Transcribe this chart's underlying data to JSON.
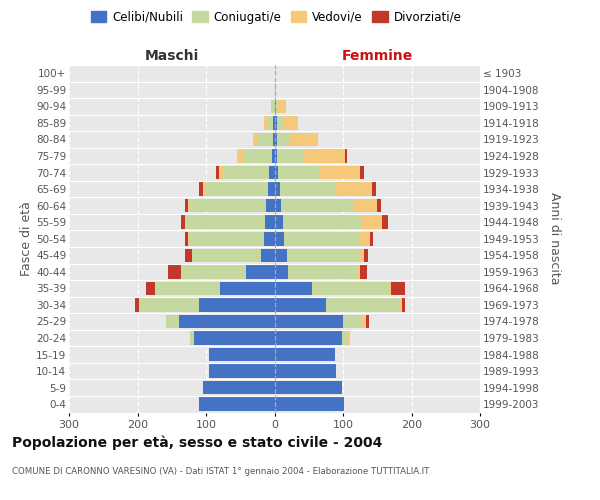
{
  "age_groups": [
    "0-4",
    "5-9",
    "10-14",
    "15-19",
    "20-24",
    "25-29",
    "30-34",
    "35-39",
    "40-44",
    "45-49",
    "50-54",
    "55-59",
    "60-64",
    "65-69",
    "70-74",
    "75-79",
    "80-84",
    "85-89",
    "90-94",
    "95-99",
    "100+"
  ],
  "birth_years": [
    "1999-2003",
    "1994-1998",
    "1989-1993",
    "1984-1988",
    "1979-1983",
    "1974-1978",
    "1969-1973",
    "1964-1968",
    "1959-1963",
    "1954-1958",
    "1949-1953",
    "1944-1948",
    "1939-1943",
    "1934-1938",
    "1929-1933",
    "1924-1928",
    "1919-1923",
    "1914-1918",
    "1909-1913",
    "1904-1908",
    "≤ 1903"
  ],
  "maschi_celibi": [
    110,
    105,
    95,
    95,
    118,
    140,
    110,
    80,
    42,
    20,
    16,
    14,
    13,
    10,
    8,
    3,
    2,
    2,
    0,
    0,
    0
  ],
  "maschi_coniugati": [
    0,
    0,
    0,
    0,
    5,
    18,
    88,
    95,
    95,
    100,
    108,
    115,
    110,
    90,
    65,
    42,
    22,
    8,
    3,
    0,
    0
  ],
  "maschi_vedovi": [
    0,
    0,
    0,
    0,
    0,
    0,
    0,
    0,
    0,
    0,
    2,
    2,
    3,
    5,
    8,
    10,
    8,
    5,
    2,
    0,
    0
  ],
  "maschi_divorziati": [
    0,
    0,
    0,
    0,
    0,
    0,
    5,
    12,
    18,
    10,
    5,
    5,
    5,
    5,
    5,
    0,
    0,
    0,
    0,
    0,
    0
  ],
  "femmine_nubili": [
    102,
    98,
    90,
    88,
    98,
    100,
    75,
    55,
    20,
    18,
    14,
    12,
    10,
    8,
    5,
    3,
    3,
    4,
    2,
    0,
    0
  ],
  "femmine_coniugate": [
    0,
    0,
    0,
    0,
    10,
    28,
    108,
    112,
    100,
    105,
    110,
    115,
    105,
    80,
    60,
    40,
    20,
    10,
    3,
    0,
    0
  ],
  "femmine_vedove": [
    0,
    0,
    0,
    0,
    2,
    5,
    3,
    3,
    5,
    8,
    15,
    30,
    35,
    55,
    60,
    60,
    40,
    20,
    12,
    2,
    0
  ],
  "femmine_divorziate": [
    0,
    0,
    0,
    0,
    0,
    5,
    5,
    20,
    10,
    5,
    5,
    8,
    5,
    5,
    5,
    3,
    0,
    0,
    0,
    0,
    0
  ],
  "color_celibi": "#4472c4",
  "color_coniugati": "#c5d8a0",
  "color_vedovi": "#f5c87a",
  "color_divorziati": "#c0392b",
  "xlim": 300,
  "xticks": [
    -300,
    -200,
    -100,
    0,
    100,
    200,
    300
  ],
  "title": "Popolazione per età, sesso e stato civile - 2004",
  "subtitle": "COMUNE DI CARONNO VARESINO (VA) - Dati ISTAT 1° gennaio 2004 - Elaborazione TUTTITALIA.IT",
  "ylabel_left": "Fasce di età",
  "ylabel_right": "Anni di nascita",
  "label_maschi": "Maschi",
  "label_femmine": "Femmine",
  "legend_labels": [
    "Celibi/Nubili",
    "Coniugati/e",
    "Vedovi/e",
    "Divorziati/e"
  ],
  "bg_color": "#ffffff",
  "plot_bg": "#e8e8e8"
}
